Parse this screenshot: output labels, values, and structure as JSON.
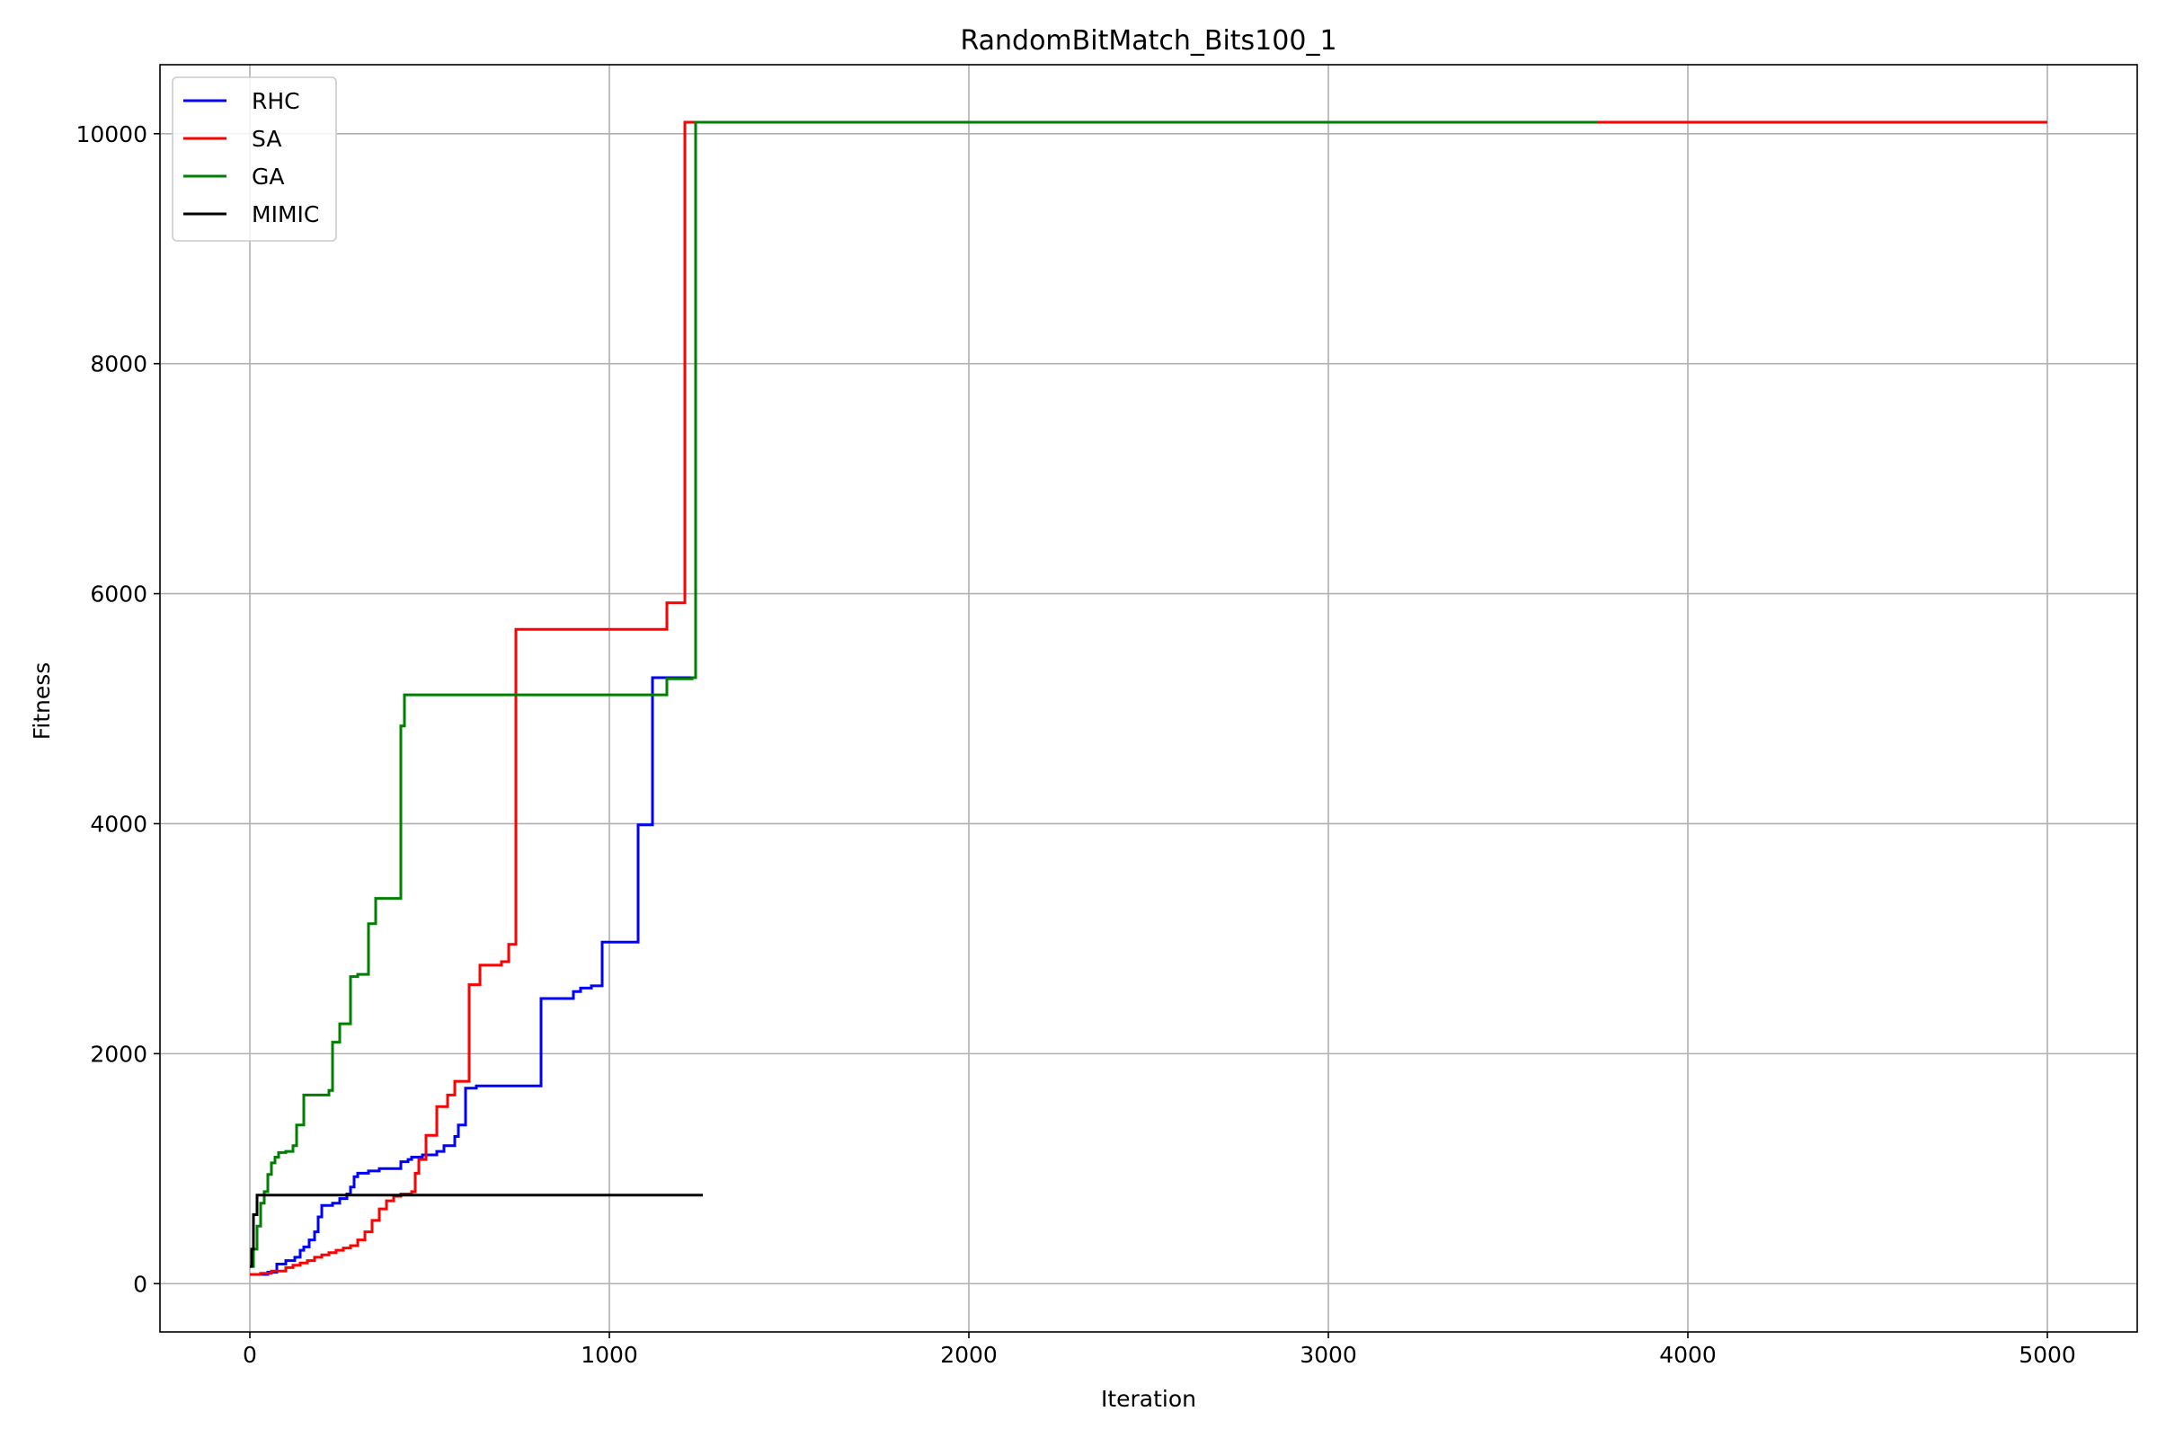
{
  "chart_data": {
    "type": "line",
    "title": "RandomBitMatch_Bits100_1",
    "xlabel": "Iteration",
    "ylabel": "Fitness",
    "xlim": [
      -250,
      5250
    ],
    "ylim": [
      -420,
      10600
    ],
    "xticks": [
      0,
      1000,
      2000,
      3000,
      4000,
      5000
    ],
    "yticks": [
      0,
      2000,
      4000,
      6000,
      8000,
      10000
    ],
    "grid": true,
    "legend_position": "top-left",
    "step": true,
    "series": [
      {
        "name": "RHC",
        "color": "#0000ff",
        "x": [
          0,
          50,
          75,
          100,
          125,
          140,
          150,
          165,
          180,
          190,
          200,
          230,
          250,
          270,
          280,
          290,
          300,
          330,
          360,
          400,
          420,
          440,
          450,
          480,
          520,
          540,
          570,
          580,
          600,
          630,
          700,
          810,
          900,
          920,
          950,
          980,
          1080,
          1120,
          1150,
          1160,
          1240
        ],
        "y": [
          80,
          100,
          170,
          200,
          230,
          290,
          320,
          380,
          450,
          580,
          680,
          700,
          740,
          780,
          840,
          930,
          960,
          980,
          1000,
          1000,
          1060,
          1080,
          1100,
          1120,
          1150,
          1200,
          1280,
          1380,
          1700,
          1720,
          1720,
          2480,
          2540,
          2570,
          2590,
          2970,
          3990,
          5270,
          5270,
          5270,
          5270
        ]
      },
      {
        "name": "SA",
        "color": "#ff0000",
        "x": [
          0,
          30,
          60,
          100,
          120,
          140,
          160,
          180,
          200,
          220,
          240,
          260,
          280,
          300,
          320,
          340,
          360,
          380,
          400,
          420,
          450,
          460,
          470,
          490,
          520,
          550,
          570,
          590,
          610,
          640,
          700,
          720,
          740,
          1160,
          1210,
          1240,
          5000
        ],
        "y": [
          80,
          90,
          110,
          140,
          160,
          180,
          200,
          230,
          250,
          270,
          290,
          310,
          330,
          380,
          450,
          550,
          650,
          720,
          760,
          780,
          800,
          960,
          1080,
          1290,
          1540,
          1640,
          1760,
          1760,
          2600,
          2770,
          2800,
          2950,
          5690,
          5920,
          10100,
          10100,
          10100
        ]
      },
      {
        "name": "GA",
        "color": "#007f00",
        "x": [
          0,
          10,
          20,
          30,
          40,
          50,
          60,
          70,
          80,
          100,
          110,
          120,
          130,
          150,
          200,
          220,
          230,
          250,
          280,
          300,
          330,
          350,
          400,
          420,
          430,
          440,
          1150,
          1160,
          1220,
          1230,
          1240,
          3750
        ],
        "y": [
          150,
          300,
          500,
          700,
          800,
          950,
          1050,
          1100,
          1140,
          1150,
          1150,
          1200,
          1380,
          1640,
          1640,
          1680,
          2100,
          2260,
          2670,
          2690,
          3130,
          3350,
          3350,
          4850,
          5120,
          5120,
          5120,
          5260,
          5260,
          5270,
          10100,
          10100
        ]
      },
      {
        "name": "MIMIC",
        "color": "#000000",
        "x": [
          0,
          5,
          10,
          20,
          1260
        ],
        "y": [
          150,
          300,
          600,
          770,
          770
        ]
      }
    ]
  }
}
